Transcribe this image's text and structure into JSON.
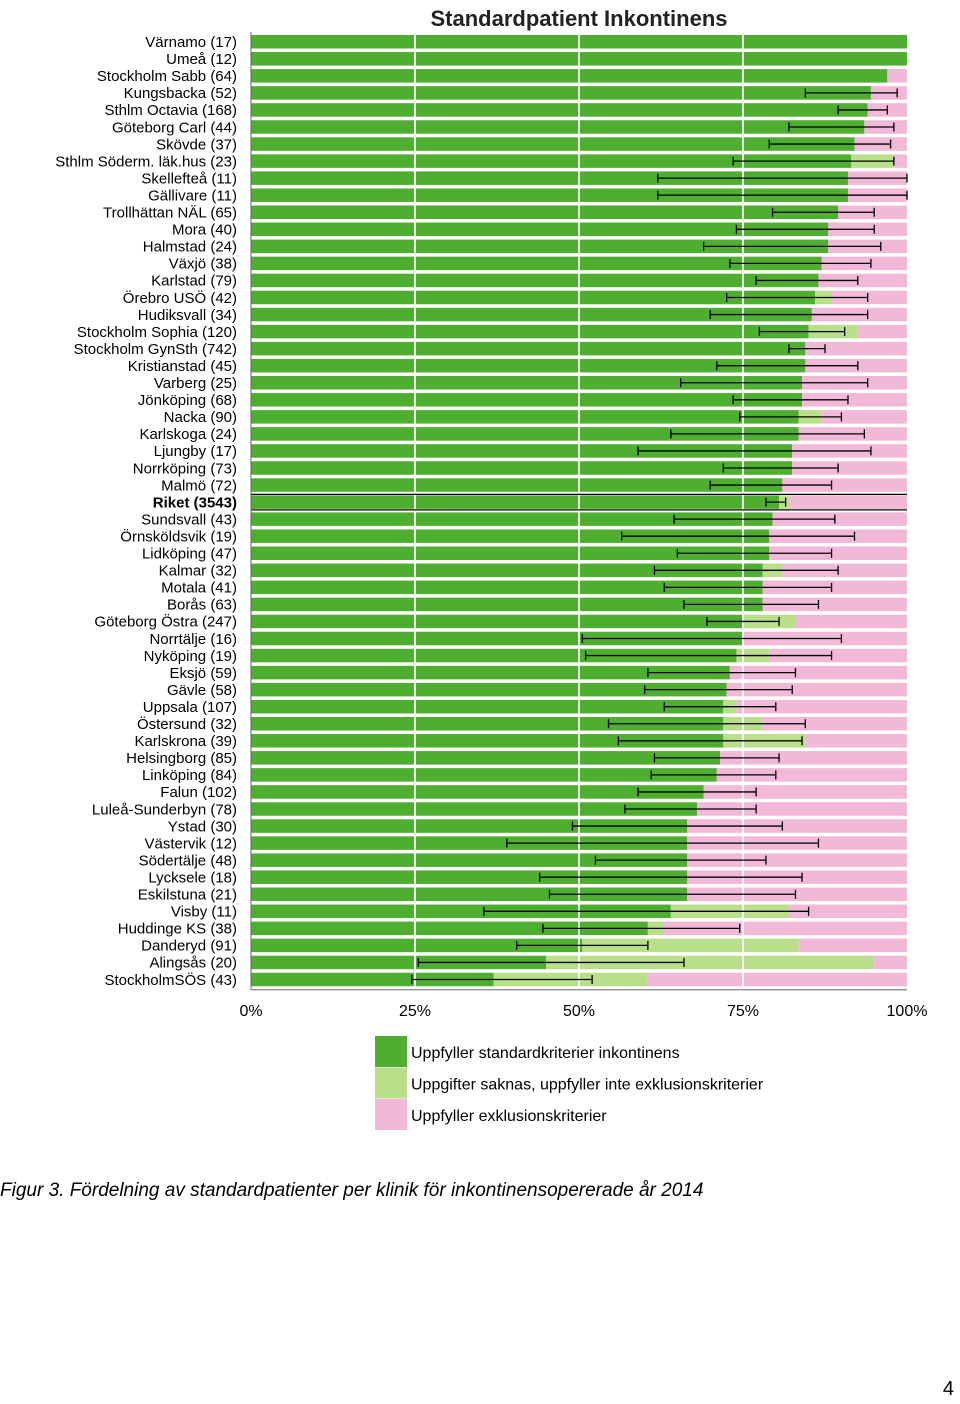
{
  "chart_data": {
    "type": "bar",
    "stacked": true,
    "orientation": "horizontal",
    "title": "Standardpatient Inkontinens",
    "xlim": [
      0,
      100
    ],
    "x_ticks": [
      "0%",
      "25%",
      "50%",
      "75%",
      "100%"
    ],
    "grid": true,
    "legend_position": "bottom",
    "colors": {
      "fulfills": "#4eae2f",
      "missing": "#b9df8a",
      "excluded": "#f1b8d7",
      "error_bar": "#000000"
    },
    "series": [
      {
        "name": "Uppfyller standardkriterier inkontinens",
        "key": "fulfills"
      },
      {
        "name": "Uppgifter saknas, uppfyller inte exklusionskriterier",
        "key": "missing"
      },
      {
        "name": "Uppfyller exklusionskriterier",
        "key": "excluded"
      }
    ],
    "rows": [
      {
        "label": "Värnamo (17)",
        "fulfills": 100,
        "missing": 0,
        "ci": null
      },
      {
        "label": "Umeå (12)",
        "fulfills": 100,
        "missing": 0,
        "ci": null
      },
      {
        "label": "Stockholm Sabb (64)",
        "fulfills": 97,
        "missing": 0,
        "ci": null
      },
      {
        "label": "Kungsbacka (52)",
        "fulfills": 94.5,
        "missing": 0,
        "ci": [
          84.5,
          98.5
        ]
      },
      {
        "label": "Sthlm Octavia (168)",
        "fulfills": 94,
        "missing": 0,
        "ci": [
          89.5,
          97
        ]
      },
      {
        "label": "Göteborg Carl (44)",
        "fulfills": 93.5,
        "missing": 0,
        "ci": [
          82,
          98
        ]
      },
      {
        "label": "Skövde (37)",
        "fulfills": 92,
        "missing": 0,
        "ci": [
          79,
          97.5
        ]
      },
      {
        "label": "Sthlm Söderm. läk.hus (23)",
        "fulfills": 91.5,
        "missing": 6.5,
        "ci": [
          73.5,
          98
        ]
      },
      {
        "label": "Skellefteå (11)",
        "fulfills": 91,
        "missing": 0,
        "ci": [
          62,
          100
        ]
      },
      {
        "label": "Gällivare (11)",
        "fulfills": 91,
        "missing": 0,
        "ci": [
          62,
          100
        ]
      },
      {
        "label": "Trollhättan NÄL (65)",
        "fulfills": 89.5,
        "missing": 0,
        "ci": [
          79.5,
          95
        ]
      },
      {
        "label": "Mora (40)",
        "fulfills": 88,
        "missing": 0,
        "ci": [
          74,
          95
        ]
      },
      {
        "label": "Halmstad (24)",
        "fulfills": 88,
        "missing": 0,
        "ci": [
          69,
          96
        ]
      },
      {
        "label": "Växjö (38)",
        "fulfills": 87,
        "missing": 0,
        "ci": [
          73,
          94.5
        ]
      },
      {
        "label": "Karlstad (79)",
        "fulfills": 86.5,
        "missing": 0,
        "ci": [
          77,
          92.5
        ]
      },
      {
        "label": "Örebro USÖ (42)",
        "fulfills": 86,
        "missing": 2.5,
        "ci": [
          72.5,
          94
        ]
      },
      {
        "label": "Hudiksvall (34)",
        "fulfills": 85.5,
        "missing": 0,
        "ci": [
          70,
          94
        ]
      },
      {
        "label": "Stockholm Sophia (120)",
        "fulfills": 85,
        "missing": 7.5,
        "ci": [
          77.5,
          90.5
        ]
      },
      {
        "label": "Stockholm GynSth (742)",
        "fulfills": 84.5,
        "missing": 0,
        "ci": [
          82,
          87.5
        ]
      },
      {
        "label": "Kristianstad (45)",
        "fulfills": 84.5,
        "missing": 0,
        "ci": [
          71,
          92.5
        ]
      },
      {
        "label": "Varberg (25)",
        "fulfills": 84,
        "missing": 0,
        "ci": [
          65.5,
          94
        ]
      },
      {
        "label": "Jönköping (68)",
        "fulfills": 84,
        "missing": 0,
        "ci": [
          73.5,
          91
        ]
      },
      {
        "label": "Nacka (90)",
        "fulfills": 83.5,
        "missing": 3.5,
        "ci": [
          74.5,
          90
        ]
      },
      {
        "label": "Karlskoga (24)",
        "fulfills": 83.5,
        "missing": 0,
        "ci": [
          64,
          93.5
        ]
      },
      {
        "label": "Ljungby (17)",
        "fulfills": 82.5,
        "missing": 0,
        "ci": [
          59,
          94.5
        ]
      },
      {
        "label": "Norrköping (73)",
        "fulfills": 82.5,
        "missing": 0,
        "ci": [
          72,
          89.5
        ]
      },
      {
        "label": "Malmö (72)",
        "fulfills": 81,
        "missing": 0,
        "ci": [
          70,
          88.5
        ]
      },
      {
        "label": "Riket (3543)",
        "fulfills": 80.5,
        "missing": 1.5,
        "ci": [
          78.5,
          81.5
        ],
        "bold": true
      },
      {
        "label": "Sundsvall (43)",
        "fulfills": 79.5,
        "missing": 0,
        "ci": [
          64.5,
          89
        ]
      },
      {
        "label": "Örnsköldsvik (19)",
        "fulfills": 79,
        "missing": 0,
        "ci": [
          56.5,
          92
        ]
      },
      {
        "label": "Lidköping (47)",
        "fulfills": 79,
        "missing": 0,
        "ci": [
          65,
          88.5
        ]
      },
      {
        "label": "Kalmar (32)",
        "fulfills": 78,
        "missing": 3,
        "ci": [
          61.5,
          89.5
        ]
      },
      {
        "label": "Motala (41)",
        "fulfills": 78,
        "missing": 0,
        "ci": [
          63,
          88.5
        ]
      },
      {
        "label": "Borås (63)",
        "fulfills": 78,
        "missing": 0,
        "ci": [
          66,
          86.5
        ]
      },
      {
        "label": "Göteborg Östra (247)",
        "fulfills": 75,
        "missing": 8,
        "ci": [
          69.5,
          80.5
        ]
      },
      {
        "label": "Norrtälje (16)",
        "fulfills": 75,
        "missing": 0,
        "ci": [
          50.5,
          90
        ]
      },
      {
        "label": "Nyköping (19)",
        "fulfills": 74,
        "missing": 5,
        "ci": [
          51,
          88.5
        ]
      },
      {
        "label": "Eksjö (59)",
        "fulfills": 73,
        "missing": 0,
        "ci": [
          60.5,
          83
        ]
      },
      {
        "label": "Gävle (58)",
        "fulfills": 72.5,
        "missing": 0,
        "ci": [
          60,
          82.5
        ]
      },
      {
        "label": "Uppsala (107)",
        "fulfills": 72,
        "missing": 2,
        "ci": [
          63,
          80
        ]
      },
      {
        "label": "Östersund (32)",
        "fulfills": 72,
        "missing": 6,
        "ci": [
          54.5,
          84.5
        ]
      },
      {
        "label": "Karlskrona (39)",
        "fulfills": 72,
        "missing": 12.5,
        "ci": [
          56,
          84
        ]
      },
      {
        "label": "Helsingborg (85)",
        "fulfills": 71.5,
        "missing": 0,
        "ci": [
          61.5,
          80.5
        ]
      },
      {
        "label": "Linköping (84)",
        "fulfills": 71,
        "missing": 0,
        "ci": [
          61,
          80
        ]
      },
      {
        "label": "Falun (102)",
        "fulfills": 69,
        "missing": 0,
        "ci": [
          59,
          77
        ]
      },
      {
        "label": "Luleå-Sunderbyn (78)",
        "fulfills": 68,
        "missing": 0,
        "ci": [
          57,
          77
        ]
      },
      {
        "label": "Ystad (30)",
        "fulfills": 66.5,
        "missing": 0,
        "ci": [
          49,
          81
        ]
      },
      {
        "label": "Västervik (12)",
        "fulfills": 66.5,
        "missing": 0,
        "ci": [
          39,
          86.5
        ]
      },
      {
        "label": "Södertälje (48)",
        "fulfills": 66.5,
        "missing": 0,
        "ci": [
          52.5,
          78.5
        ]
      },
      {
        "label": "Lycksele (18)",
        "fulfills": 66.5,
        "missing": 0,
        "ci": [
          44,
          84
        ]
      },
      {
        "label": "Eskilstuna (21)",
        "fulfills": 66.5,
        "missing": 0,
        "ci": [
          45.5,
          83
        ]
      },
      {
        "label": "Visby (11)",
        "fulfills": 64,
        "missing": 18,
        "ci": [
          35.5,
          85
        ]
      },
      {
        "label": "Huddinge KS (38)",
        "fulfills": 60.5,
        "missing": 2.5,
        "ci": [
          44.5,
          74.5
        ]
      },
      {
        "label": "Danderyd (91)",
        "fulfills": 50.5,
        "missing": 33,
        "ci": [
          40.5,
          60.5
        ]
      },
      {
        "label": "Alingsås (20)",
        "fulfills": 45,
        "missing": 50,
        "ci": [
          25.5,
          66
        ]
      },
      {
        "label": "StockholmSÖS (43)",
        "fulfills": 37,
        "missing": 23.5,
        "ci": [
          24.5,
          52
        ]
      }
    ]
  },
  "caption": "Figur 3. Fördelning av standardpatienter per klinik för inkontinensopererade år 2014",
  "page_number": "4"
}
